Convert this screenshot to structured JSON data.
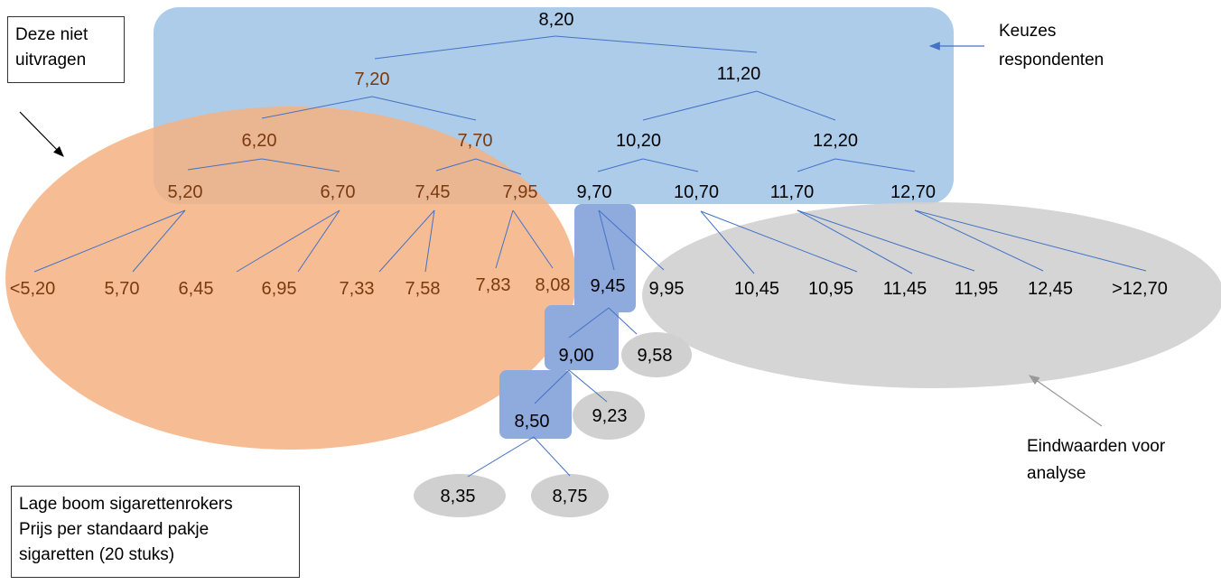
{
  "nodes": {
    "n820": "8,20",
    "n720": "7,20",
    "n1120": "11,20",
    "n620": "6,20",
    "n770": "7,70",
    "n1020": "10,20",
    "n1220": "12,20",
    "n520": "5,20",
    "n670": "6,70",
    "n745": "7,45",
    "n795": "7,95",
    "n970": "9,70",
    "n1070": "10,70",
    "n1170": "11,70",
    "n1270": "12,70",
    "nlt520": "<5,20",
    "n570": "5,70",
    "n645": "6,45",
    "n695": "6,95",
    "n733": "7,33",
    "n758": "7,58",
    "n783": "7,83",
    "n808": "8,08",
    "n945": "9,45",
    "n995": "9,95",
    "n1045": "10,45",
    "n1095": "10,95",
    "n1145": "11,45",
    "n1195": "11,95",
    "n1245": "12,45",
    "ngt1270": ">12,70",
    "n900": "9,00",
    "n958": "9,58",
    "n850": "8,50",
    "n923": "9,23",
    "n835": "8,35",
    "n875": "8,75"
  },
  "annotations": {
    "skip_box": [
      "Deze niet",
      "uitvragen"
    ],
    "choices": [
      "Keuzes",
      "respondenten"
    ],
    "endvalues": [
      "Eindwaarden voor",
      "analyse"
    ],
    "legend_box": [
      "Lage boom sigarettenrokers",
      "Prijs per standaard pakje",
      "sigaretten (20 stuks)"
    ]
  },
  "colors": {
    "blue_region": "#9dc3e6",
    "orange_region": "#f4b183",
    "grey_region": "#d0d0d0",
    "path_box": "#8faadc",
    "line": "#4472c4"
  }
}
